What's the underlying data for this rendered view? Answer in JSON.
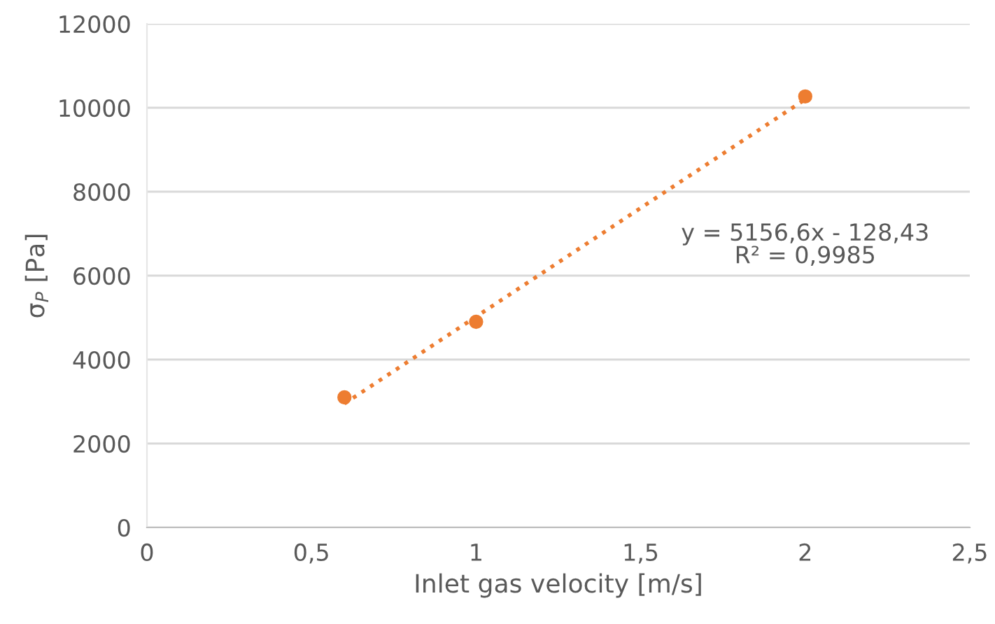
{
  "chart_data": {
    "type": "scatter",
    "xlabel": "Inlet gas velocity [m/s]",
    "ylabel": "σ$_{P}$ [Pa]",
    "series": [
      {
        "color": "#ed7d31",
        "x": [
          0.6,
          1,
          2
        ],
        "values": [
          3100,
          4900,
          10270
        ],
        "marker": "circle"
      },
      {
        "type": "line",
        "color": "#ed7d31",
        "x": [
          0.6,
          2
        ],
        "values": [
          2950,
          10200
        ],
        "line_style": "dotted",
        "marker": "none"
      }
    ],
    "xlim": [
      0,
      2.5
    ],
    "xticks": [
      0,
      {
        "value": 0.5,
        "label": "0,5"
      },
      1,
      {
        "value": 1.5,
        "label": "1,5"
      },
      2,
      {
        "value": 2.5,
        "label": "2,5"
      }
    ],
    "ylim": [
      0,
      12000
    ],
    "yticks": [
      0,
      2000,
      4000,
      6000,
      8000,
      10000,
      12000
    ],
    "grid": "y",
    "legend": false,
    "annotations": [
      "y = 5156,6x - 128,43\nR² = 0,9985"
    ]
  }
}
